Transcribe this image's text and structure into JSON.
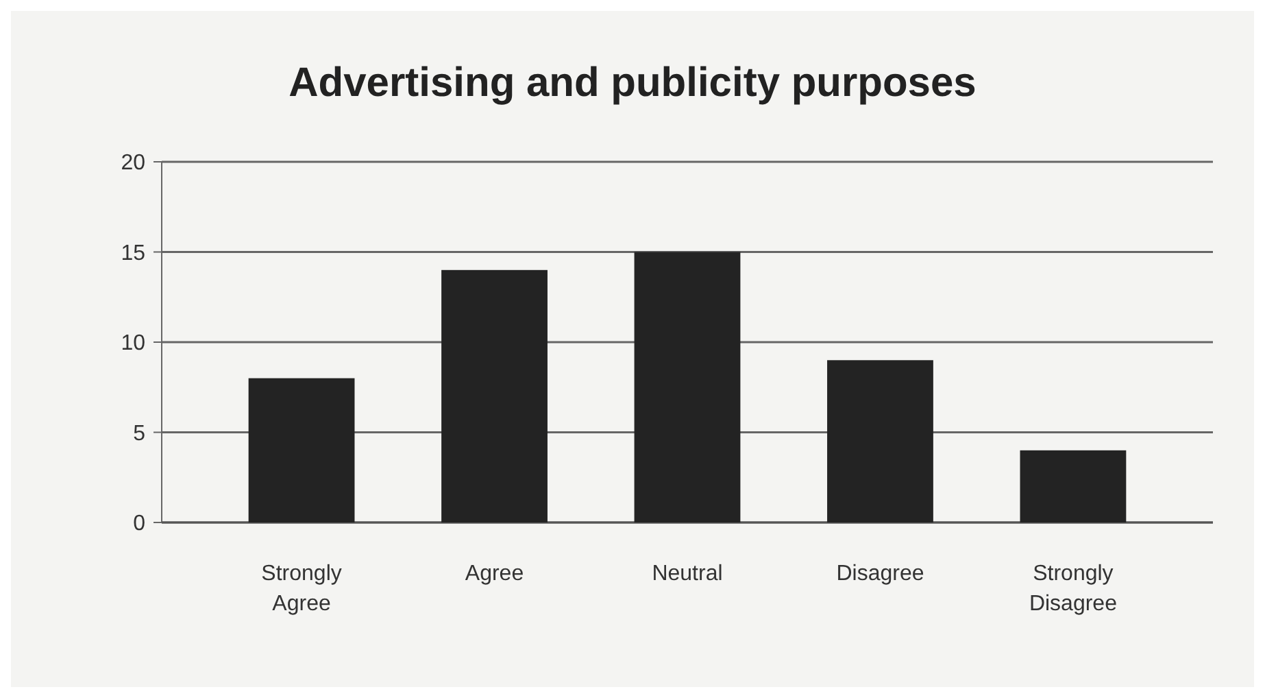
{
  "chart_data": {
    "type": "bar",
    "title": "Advertising and publicity purposes",
    "categories": [
      "Strongly Agree",
      "Agree",
      "Neutral",
      "Disagree",
      "Strongly Disagree"
    ],
    "values": [
      8,
      14,
      15,
      9,
      4
    ],
    "color": "#232323",
    "ylim": [
      0,
      20
    ],
    "yticks": [
      0,
      5,
      10,
      15,
      20
    ],
    "grid": "y"
  }
}
